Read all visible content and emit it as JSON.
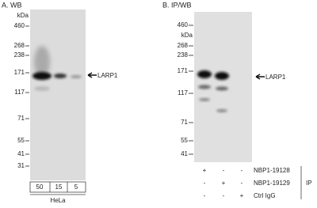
{
  "panel_a": {
    "title": "A. WB",
    "kda_label": "kDa",
    "markers": [
      "460",
      "268",
      "238",
      "171",
      "117",
      "71",
      "55",
      "41",
      "31"
    ],
    "lanes": [
      "50",
      "15",
      "5"
    ],
    "sample": "HeLa",
    "target": "LARP1"
  },
  "panel_b": {
    "title": "B. IP/WB",
    "kda_label": "kDa",
    "markers": [
      "460",
      "268",
      "238",
      "171",
      "117",
      "71",
      "55",
      "41"
    ],
    "rows": [
      {
        "label": "NBP1-19128",
        "cells": [
          "+",
          "-",
          "-"
        ]
      },
      {
        "label": "NBP1-19129",
        "cells": [
          "-",
          "+",
          "-"
        ]
      },
      {
        "label": "Ctrl IgG",
        "cells": [
          "-",
          "-",
          "+"
        ]
      }
    ],
    "ip_label": "IP",
    "target": "LARP1"
  }
}
